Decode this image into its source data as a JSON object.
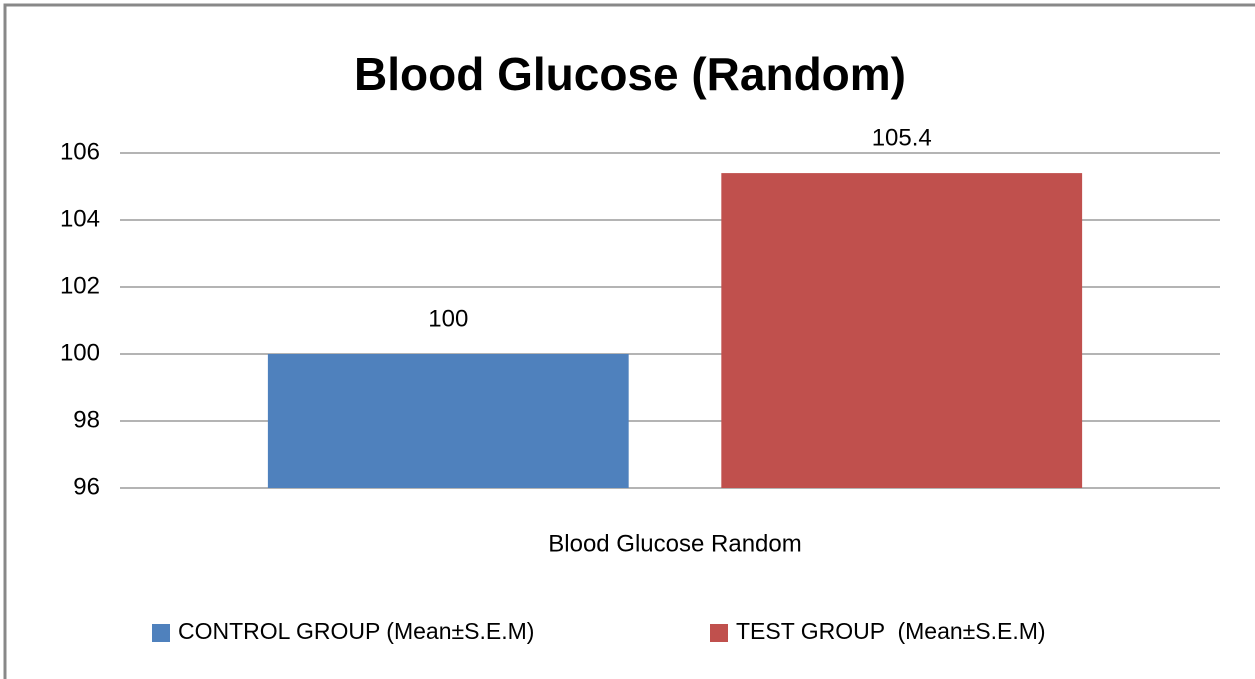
{
  "chart_data": {
    "type": "bar",
    "title": "Blood Glucose (Random)",
    "categories": [
      "Blood Glucose Random"
    ],
    "series": [
      {
        "name": "CONTROL GROUP (Mean±S.E.M)",
        "color": "#4f81bd",
        "values": [
          100
        ]
      },
      {
        "name": "TEST GROUP  (Mean±S.E.M)",
        "color": "#c0504d",
        "values": [
          105.4
        ]
      }
    ],
    "ylim": [
      96,
      106
    ],
    "yticks": [
      96,
      98,
      100,
      102,
      104,
      106
    ],
    "grid": true,
    "legend": "bottom"
  }
}
